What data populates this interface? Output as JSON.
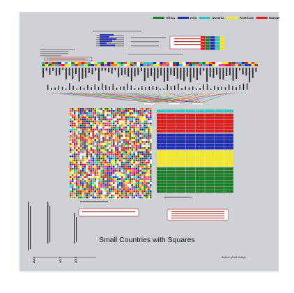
{
  "title": "Small Countries with Squares",
  "author": "Author: Ariel Vallejo",
  "legend": [
    {
      "label": "Africa",
      "color": "#1e7d2a"
    },
    {
      "label": "Asia",
      "color": "#1f2fb0"
    },
    {
      "label": "Oceania",
      "color": "#2ec4c4"
    },
    {
      "label": "Americas",
      "color": "#f5e62a"
    },
    {
      "label": "Europe",
      "color": "#d91e1e"
    }
  ],
  "year_labels": [
    "2015",
    "2017",
    "2019"
  ],
  "colors": {
    "background": "#cfd2d4",
    "annotation_border": "#b33a3a",
    "dark_bar": "#333333"
  },
  "chart_data": {
    "type": "heatmap",
    "title": "Small Countries with Squares",
    "series": [
      {
        "name": "Africa",
        "color": "#1e7d2a"
      },
      {
        "name": "Asia",
        "color": "#1f2fb0"
      },
      {
        "name": "Oceania",
        "color": "#2ec4c4"
      },
      {
        "name": "Americas",
        "color": "#f5e62a"
      },
      {
        "name": "Europe",
        "color": "#d91e1e"
      }
    ],
    "grid_colors": [
      "#d91e1e",
      "#f5e62a",
      "#1f2fb0",
      "#2ec4c4",
      "#1e7d2a",
      "#ffffff",
      "#e0409a",
      "#f08a1c"
    ],
    "stacked_bands": [
      {
        "continent": "Oceania",
        "color": "#2ec4c4",
        "rows": 1
      },
      {
        "continent": "Europe",
        "color": "#d91e1e",
        "rows": 6
      },
      {
        "continent": "Asia",
        "color": "#1f2fb0",
        "rows": 5
      },
      {
        "continent": "Americas",
        "color": "#f5e62a",
        "rows": 5
      },
      {
        "continent": "Africa",
        "color": "#1e7d2a",
        "rows": 8
      }
    ],
    "legend_position": "top-right",
    "xlabel": "",
    "ylabel": ""
  }
}
